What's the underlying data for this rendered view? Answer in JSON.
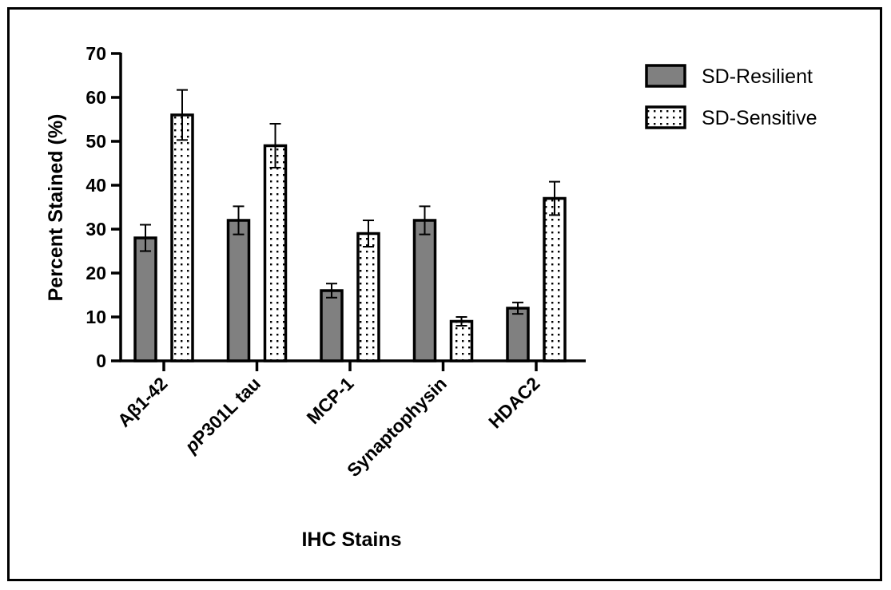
{
  "chart_data": {
    "type": "bar",
    "xlabel": "IHC Stains",
    "ylabel": "Percent Stained (%)",
    "ylim": [
      0,
      70
    ],
    "yticks": [
      0,
      10,
      20,
      30,
      40,
      50,
      60,
      70
    ],
    "categories": [
      "Aβ1-42",
      "pP301L tau",
      "MCP-1",
      "Synaptophysin",
      "HDAC2"
    ],
    "series": [
      {
        "name": "SD-Resilient",
        "fill": "#808080",
        "pattern": "solid",
        "values": [
          28,
          32,
          16,
          32,
          12
        ],
        "errors": [
          3,
          3.2,
          1.6,
          3.2,
          1.3
        ]
      },
      {
        "name": "SD-Sensitive",
        "fill": "#ffffff",
        "pattern": "dotted",
        "values": [
          56,
          49,
          29,
          9,
          37
        ],
        "errors": [
          5.7,
          5,
          3,
          1,
          3.8
        ]
      }
    ],
    "legend_position": "top-right",
    "grid": false
  }
}
